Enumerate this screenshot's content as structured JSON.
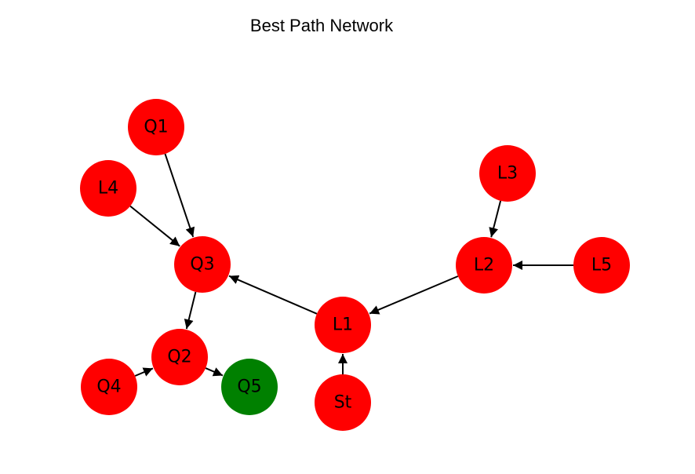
{
  "title": "Best Path Network",
  "colors": {
    "path_node": "#ff0000",
    "goal_node": "#008000",
    "edge": "#000000",
    "label": "#000000"
  },
  "nodes": [
    {
      "id": "Q1",
      "label": "Q1",
      "role": "path"
    },
    {
      "id": "L4",
      "label": "L4",
      "role": "path"
    },
    {
      "id": "Q3",
      "label": "Q3",
      "role": "path"
    },
    {
      "id": "L3",
      "label": "L3",
      "role": "path"
    },
    {
      "id": "L2",
      "label": "L2",
      "role": "path"
    },
    {
      "id": "L5",
      "label": "L5",
      "role": "path"
    },
    {
      "id": "L1",
      "label": "L1",
      "role": "path"
    },
    {
      "id": "Q2",
      "label": "Q2",
      "role": "path"
    },
    {
      "id": "Q4",
      "label": "Q4",
      "role": "path"
    },
    {
      "id": "Q5",
      "label": "Q5",
      "role": "goal"
    },
    {
      "id": "St",
      "label": "St",
      "role": "path"
    }
  ],
  "edges": [
    {
      "from": "Q1",
      "to": "Q3"
    },
    {
      "from": "L4",
      "to": "Q3"
    },
    {
      "from": "L1",
      "to": "Q3"
    },
    {
      "from": "Q3",
      "to": "Q2"
    },
    {
      "from": "Q4",
      "to": "Q2"
    },
    {
      "from": "Q2",
      "to": "Q5"
    },
    {
      "from": "L3",
      "to": "L2"
    },
    {
      "from": "L5",
      "to": "L2"
    },
    {
      "from": "L2",
      "to": "L1"
    },
    {
      "from": "St",
      "to": "L1"
    }
  ]
}
